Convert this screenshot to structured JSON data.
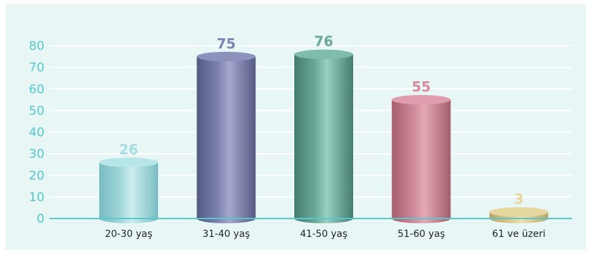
{
  "chart_data": {
    "type": "bar",
    "title": "",
    "xlabel": "",
    "ylabel": "",
    "categories": [
      "20-30 yaş",
      "31-40 yaş",
      "41-50 yaş",
      "51-60 yaş",
      "61 ve üzeri"
    ],
    "values": [
      26,
      75,
      76,
      55,
      3
    ],
    "data_labels": [
      "26",
      "75",
      "76",
      "55",
      "3"
    ],
    "ylim": [
      0,
      80
    ],
    "yticks": [
      0,
      10,
      20,
      30,
      40,
      50,
      60,
      70,
      80
    ],
    "grid": true,
    "legend": "none",
    "colors": {
      "background": "#e9f6f6",
      "gridline": "#ffffff",
      "baseline": "#55c9cf",
      "ytick_text": "#55c9cf",
      "xtick_text": "#222222",
      "bars": [
        {
          "light": "#cdeeee",
          "mid": "#9fd5d8",
          "dark": "#78bcc1",
          "top": "#b7e6e8",
          "label": "#a6dde0"
        },
        {
          "light": "#a4a8cd",
          "mid": "#7b80ad",
          "dark": "#565a83",
          "top": "#8d92bd",
          "label": "#7e84b6"
        },
        {
          "light": "#9ad0c0",
          "mid": "#6aa897",
          "dark": "#457c6e",
          "top": "#7fbcab",
          "label": "#6aa897"
        },
        {
          "light": "#e3a9b5",
          "mid": "#cc8797",
          "dark": "#a45e6e",
          "top": "#df9db0",
          "label": "#d98a9c"
        },
        {
          "light": "#efe2b2",
          "mid": "#dac98c",
          "dark": "#b7a468",
          "top": "#e6d79f",
          "label": "#e7d79c"
        }
      ]
    }
  }
}
